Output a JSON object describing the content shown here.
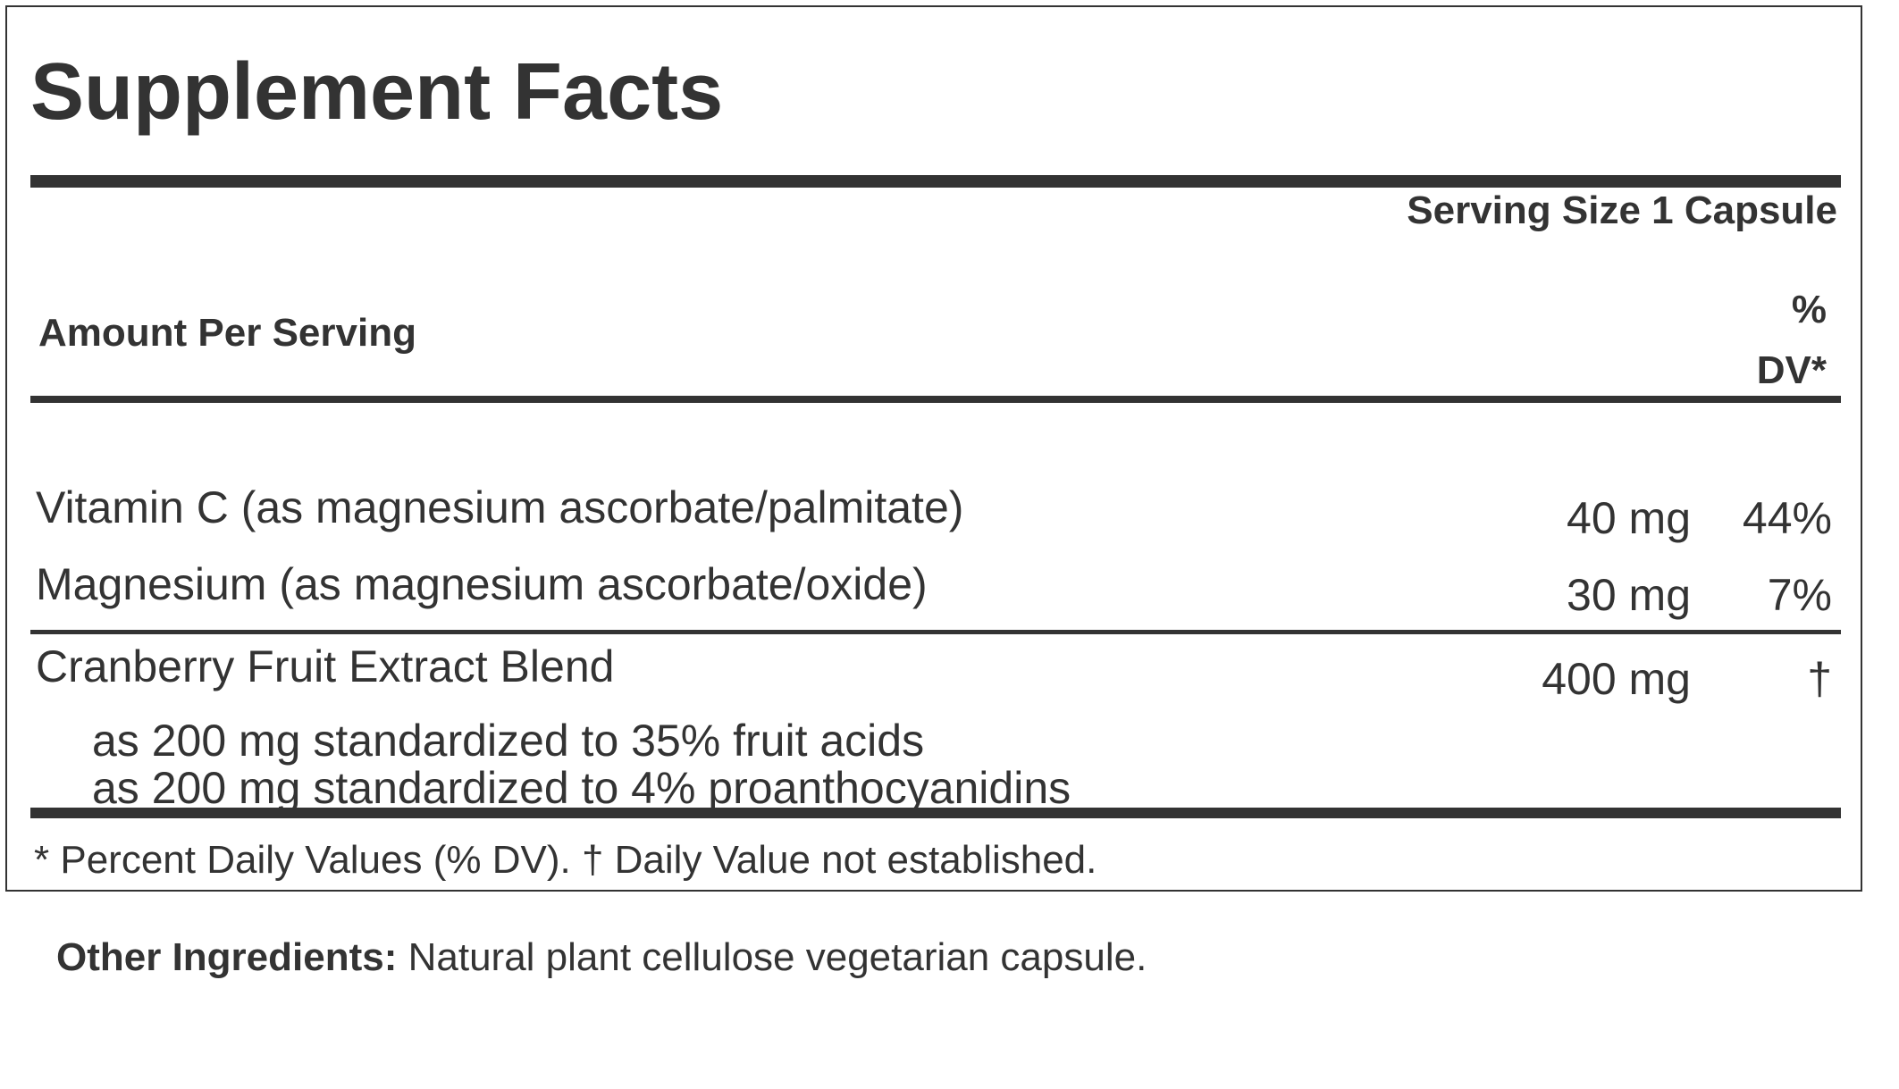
{
  "panel": {
    "title": "Supplement Facts",
    "serving_size": "Serving Size 1 Capsule",
    "amount_per_serving": "Amount Per Serving",
    "dv_header_line1": "%",
    "dv_header_line2": "DV*",
    "nutrients": [
      {
        "name": "Vitamin C (as magnesium ascorbate/palmitate)",
        "amount": "40 mg",
        "dv": "44%"
      },
      {
        "name": "Magnesium (as magnesium ascorbate/oxide)",
        "amount": "30 mg",
        "dv": "7%"
      },
      {
        "name": "Cranberry Fruit Extract Blend",
        "amount": "400 mg",
        "dv": "†",
        "sub_lines": [
          "as 200 mg standardized to 35% fruit acids",
          "as 200 mg standardized to 4% proanthocyanidins"
        ]
      }
    ],
    "footnote": "* Percent Daily Values (% DV). † Daily Value not established."
  },
  "other_ingredients": {
    "label": "Other Ingredients:",
    "text": " Natural plant cellulose vegetarian capsule."
  },
  "colors": {
    "text": "#333333",
    "rule": "#333333",
    "background": "#ffffff"
  }
}
